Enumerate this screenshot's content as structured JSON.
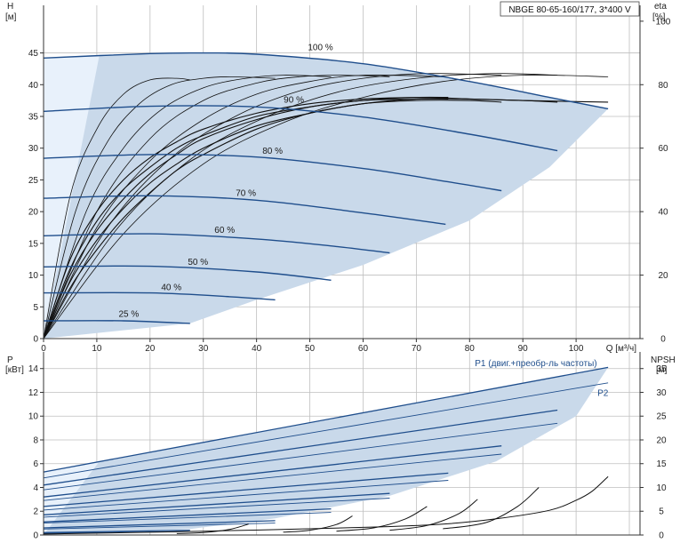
{
  "title": "NBGE 80-65-160/177, 3*400 V",
  "colors": {
    "region": "#c9d9ea",
    "region_light": "#e8f1fb",
    "curve": "#1f4e8c",
    "eff_curve": "#111111",
    "grid": "#bfbfbf"
  },
  "chart_data": [
    {
      "type": "line",
      "name": "top",
      "x": {
        "label": "Q [м³/ч]",
        "range": [
          0,
          112
        ],
        "ticks": [
          0,
          10,
          20,
          30,
          40,
          50,
          60,
          70,
          80,
          90,
          100
        ]
      },
      "y_left": {
        "label_top": "H",
        "label_unit": "[м]",
        "range": [
          0,
          52.5
        ],
        "ticks": [
          0,
          5,
          10,
          15,
          20,
          25,
          30,
          35,
          40,
          45
        ]
      },
      "y_right": {
        "label_top": "eta",
        "label_unit": "[%]",
        "range": [
          0,
          105
        ],
        "ticks": [
          0,
          20,
          40,
          60,
          80,
          100
        ]
      },
      "head_curves": [
        {
          "label": "100 %",
          "label_at": [
            52,
            45.3
          ],
          "x": [
            0,
            20,
            30,
            40,
            60,
            80,
            95,
            106
          ],
          "y": [
            44.2,
            44.9,
            45,
            44.8,
            43.3,
            40.5,
            38,
            36.2
          ]
        },
        {
          "label": "90 %",
          "label_at": [
            47,
            37
          ],
          "x": [
            0,
            20,
            40,
            60,
            80,
            96.5
          ],
          "y": [
            35.8,
            36.6,
            36.5,
            34.9,
            32.2,
            29.6
          ]
        },
        {
          "label": "80 %",
          "label_at": [
            43,
            29
          ],
          "x": [
            0,
            20,
            40,
            60,
            76,
            86
          ],
          "y": [
            28.4,
            29,
            28.6,
            26.8,
            24.7,
            23.3
          ]
        },
        {
          "label": "70 %",
          "label_at": [
            38,
            22.3
          ],
          "x": [
            0,
            20,
            40,
            60,
            75.5
          ],
          "y": [
            22.1,
            22.5,
            21.8,
            19.8,
            18
          ]
        },
        {
          "label": "60 %",
          "label_at": [
            34,
            16.5
          ],
          "x": [
            0,
            20,
            40,
            55,
            65
          ],
          "y": [
            16.2,
            16.5,
            15.7,
            14.5,
            13.5
          ]
        },
        {
          "label": "50 %",
          "label_at": [
            29,
            11.5
          ],
          "x": [
            0,
            20,
            40,
            54
          ],
          "y": [
            11.3,
            11.4,
            10.5,
            9.2
          ]
        },
        {
          "label": "40 %",
          "label_at": [
            24,
            7.5
          ],
          "x": [
            0,
            20,
            35,
            43.5
          ],
          "y": [
            7.2,
            7.2,
            6.6,
            6.1
          ]
        },
        {
          "label": "25 %",
          "label_at": [
            16,
            3.3
          ],
          "x": [
            0,
            15,
            27.5
          ],
          "y": [
            2.8,
            2.8,
            2.4
          ]
        }
      ],
      "efficiency_curves": [
        {
          "x": [
            0,
            5,
            10,
            15,
            20,
            25,
            27.5
          ],
          "y": [
            0,
            45,
            66,
            77,
            81.5,
            82,
            81.5
          ]
        },
        {
          "x": [
            0,
            6,
            12,
            18,
            24,
            30,
            35,
            43.5
          ],
          "y": [
            0,
            40,
            62,
            74,
            80,
            82,
            82.5,
            82
          ]
        },
        {
          "x": [
            0,
            8,
            15,
            22,
            30,
            38,
            45,
            54
          ],
          "y": [
            0,
            40,
            60,
            72,
            79,
            82,
            83,
            82.5
          ]
        },
        {
          "x": [
            0,
            10,
            20,
            30,
            40,
            48,
            56,
            65
          ],
          "y": [
            0,
            40,
            63,
            75,
            80.5,
            82.5,
            83,
            82.5
          ]
        },
        {
          "x": [
            0,
            10,
            20,
            30,
            40,
            50,
            60,
            75.5
          ],
          "y": [
            0,
            35,
            56,
            69,
            77,
            81,
            83,
            82.5
          ]
        },
        {
          "x": [
            0,
            12,
            24,
            36,
            48,
            60,
            72,
            86
          ],
          "y": [
            0,
            35,
            57,
            70,
            78,
            82,
            83.5,
            83
          ]
        },
        {
          "x": [
            0,
            14,
            28,
            42,
            56,
            70,
            84,
            96.5
          ],
          "y": [
            0,
            35,
            57,
            70,
            78,
            82,
            83.5,
            83
          ]
        },
        {
          "x": [
            0,
            15,
            30,
            45,
            60,
            75,
            90,
            106
          ],
          "y": [
            0,
            33,
            55,
            68,
            76,
            81,
            83,
            82.5
          ]
        }
      ],
      "system_curves": [
        {
          "x": [
            0,
            5,
            10,
            15,
            20,
            25,
            30,
            40,
            50,
            60,
            70,
            76
          ],
          "y": [
            0,
            25,
            40,
            50,
            57,
            62,
            66,
            71,
            74,
            75.5,
            76,
            76
          ]
        },
        {
          "x": [
            0,
            5,
            10,
            15,
            20,
            25,
            30,
            40,
            50,
            60,
            70,
            76
          ],
          "y": [
            0,
            22,
            37,
            47,
            54,
            60,
            64,
            70,
            73,
            75,
            75.5,
            75.5
          ]
        },
        {
          "x": [
            0,
            5,
            10,
            15,
            20,
            25,
            30,
            40,
            50,
            60,
            70,
            80,
            90,
            106
          ],
          "y": [
            0,
            20,
            34,
            44,
            52,
            58,
            63,
            69,
            73,
            75,
            76,
            75.5,
            75,
            74.5
          ]
        },
        {
          "x": [
            0,
            5,
            10,
            15,
            20,
            25,
            30,
            40,
            50,
            60,
            70,
            80,
            86
          ],
          "y": [
            0,
            18,
            31,
            41,
            49,
            55,
            60,
            67,
            71,
            74,
            75,
            75,
            74.5
          ]
        },
        {
          "x": [
            0,
            5,
            10,
            15,
            20,
            25,
            30,
            40,
            50,
            60,
            70,
            80,
            90,
            96.5
          ],
          "y": [
            0,
            16,
            28,
            38,
            46,
            53,
            58,
            66,
            71,
            74,
            75.5,
            75.5,
            75,
            74.5
          ]
        }
      ],
      "best_fit_region": {
        "x": [
          0,
          10,
          20,
          30,
          40,
          60,
          80,
          95,
          106,
          95,
          80,
          60,
          40,
          27.5,
          0,
          0
        ],
        "y": [
          44.2,
          44.7,
          44.9,
          45,
          44.8,
          43.3,
          40.5,
          38,
          36.2,
          27,
          18.6,
          11.6,
          6.1,
          2.4,
          0,
          44.2
        ]
      },
      "light_region": {
        "x": [
          0,
          10.5,
          0
        ],
        "y": [
          44.2,
          44.7,
          0
        ]
      }
    },
    {
      "type": "line",
      "name": "bottom",
      "x": {
        "range": [
          0,
          112
        ],
        "ticks": []
      },
      "y_left": {
        "label_top": "P",
        "label_unit": "[кВт]",
        "range": [
          0,
          15.4
        ],
        "ticks": [
          0,
          2,
          4,
          6,
          8,
          10,
          12,
          14
        ]
      },
      "y_right": {
        "label_top": "NPSH",
        "label_unit": "[м]",
        "range": [
          0,
          38.5
        ],
        "ticks": [
          0,
          5,
          10,
          15,
          20,
          25,
          30,
          35
        ]
      },
      "series": [
        {
          "name": "P1 (двиг.+преобр-ль частоты)",
          "label_at": [
            81,
            14.2
          ]
        },
        {
          "name": "P2",
          "label_at": [
            104,
            11.7
          ]
        }
      ],
      "power_curves": [
        {
          "x": [
            0,
            106
          ],
          "y": [
            5.3,
            14.1
          ]
        },
        {
          "x": [
            0,
            106
          ],
          "y": [
            4.8,
            12.8
          ]
        },
        {
          "x": [
            0,
            96.5
          ],
          "y": [
            4.2,
            10.5
          ]
        },
        {
          "x": [
            0,
            96.5
          ],
          "y": [
            3.8,
            9.4
          ]
        },
        {
          "x": [
            0,
            86
          ],
          "y": [
            3.2,
            7.5
          ]
        },
        {
          "x": [
            0,
            86
          ],
          "y": [
            2.9,
            6.8
          ]
        },
        {
          "x": [
            0,
            76
          ],
          "y": [
            2.4,
            5.2
          ]
        },
        {
          "x": [
            0,
            76
          ],
          "y": [
            2.1,
            4.6
          ]
        },
        {
          "x": [
            0,
            65
          ],
          "y": [
            1.7,
            3.5
          ]
        },
        {
          "x": [
            0,
            65
          ],
          "y": [
            1.5,
            3.1
          ]
        },
        {
          "x": [
            0,
            54
          ],
          "y": [
            1.1,
            2.2
          ]
        },
        {
          "x": [
            0,
            54
          ],
          "y": [
            1.0,
            1.9
          ]
        },
        {
          "x": [
            0,
            43.5
          ],
          "y": [
            0.6,
            1.2
          ]
        },
        {
          "x": [
            0,
            43.5
          ],
          "y": [
            0.5,
            1.0
          ]
        },
        {
          "x": [
            0,
            27.5
          ],
          "y": [
            0.2,
            0.4
          ]
        },
        {
          "x": [
            0,
            27.5
          ],
          "y": [
            0.15,
            0.3
          ]
        }
      ],
      "npsh_curves": [
        {
          "x": [
            25,
            30,
            35,
            38.5
          ],
          "y": [
            0.3,
            0.5,
            1.2,
            2.3
          ]
        },
        {
          "x": [
            45,
            50,
            55,
            58
          ],
          "y": [
            0.6,
            1.0,
            2.2,
            4
          ]
        },
        {
          "x": [
            55,
            62,
            68,
            72
          ],
          "y": [
            0.8,
            1.5,
            3.4,
            6
          ]
        },
        {
          "x": [
            65,
            72,
            78,
            81.5
          ],
          "y": [
            1.0,
            2.0,
            4.5,
            7.5
          ]
        },
        {
          "x": [
            75,
            83,
            89,
            93
          ],
          "y": [
            1.3,
            2.6,
            6,
            10
          ]
        },
        {
          "x": [
            0,
            30,
            60,
            75,
            85,
            95,
            100,
            103,
            106
          ],
          "y": [
            0.2,
            0.8,
            1.6,
            2.3,
            3.4,
            5.2,
            7.3,
            9.2,
            12.3
          ]
        }
      ],
      "best_fit_region": {
        "x": [
          0,
          106,
          100,
          85,
          65,
          43.5,
          27.5,
          0
        ],
        "y": [
          5.3,
          14.1,
          10,
          6.2,
          3.3,
          1.4,
          0.5,
          0
        ]
      },
      "light_region": {
        "x": [
          0,
          10.5,
          0
        ],
        "y": [
          5.3,
          6.2,
          0
        ]
      }
    }
  ]
}
